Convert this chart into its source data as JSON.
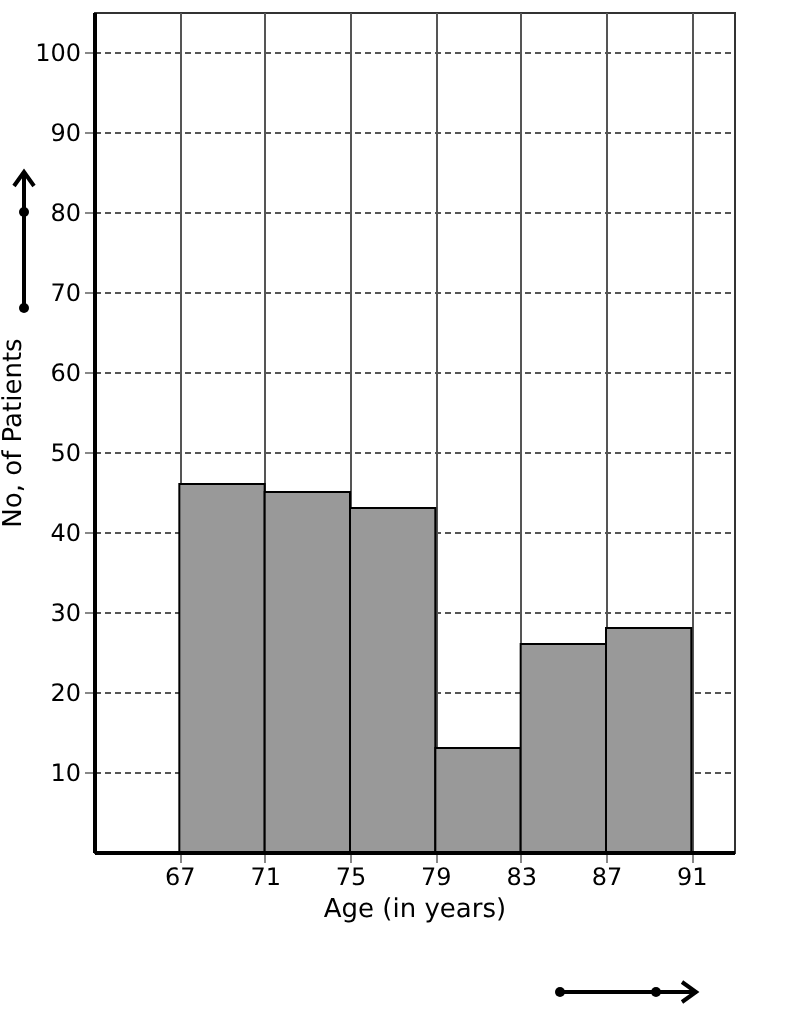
{
  "chart_data": {
    "type": "histogram",
    "xlabel": "Age (in years)",
    "ylabel": "No, of Patients",
    "bins": [
      67,
      71,
      75,
      79,
      83,
      87,
      91
    ],
    "values": [
      46,
      45,
      43,
      13,
      26,
      28
    ],
    "color": "#999999",
    "xlim": [
      63,
      93
    ],
    "ylim": [
      0,
      105
    ],
    "xticks": [
      67,
      71,
      75,
      79,
      83,
      87,
      91
    ],
    "yticks": [
      10,
      20,
      30,
      40,
      50,
      60,
      70,
      80,
      90,
      100
    ],
    "grid": true
  }
}
